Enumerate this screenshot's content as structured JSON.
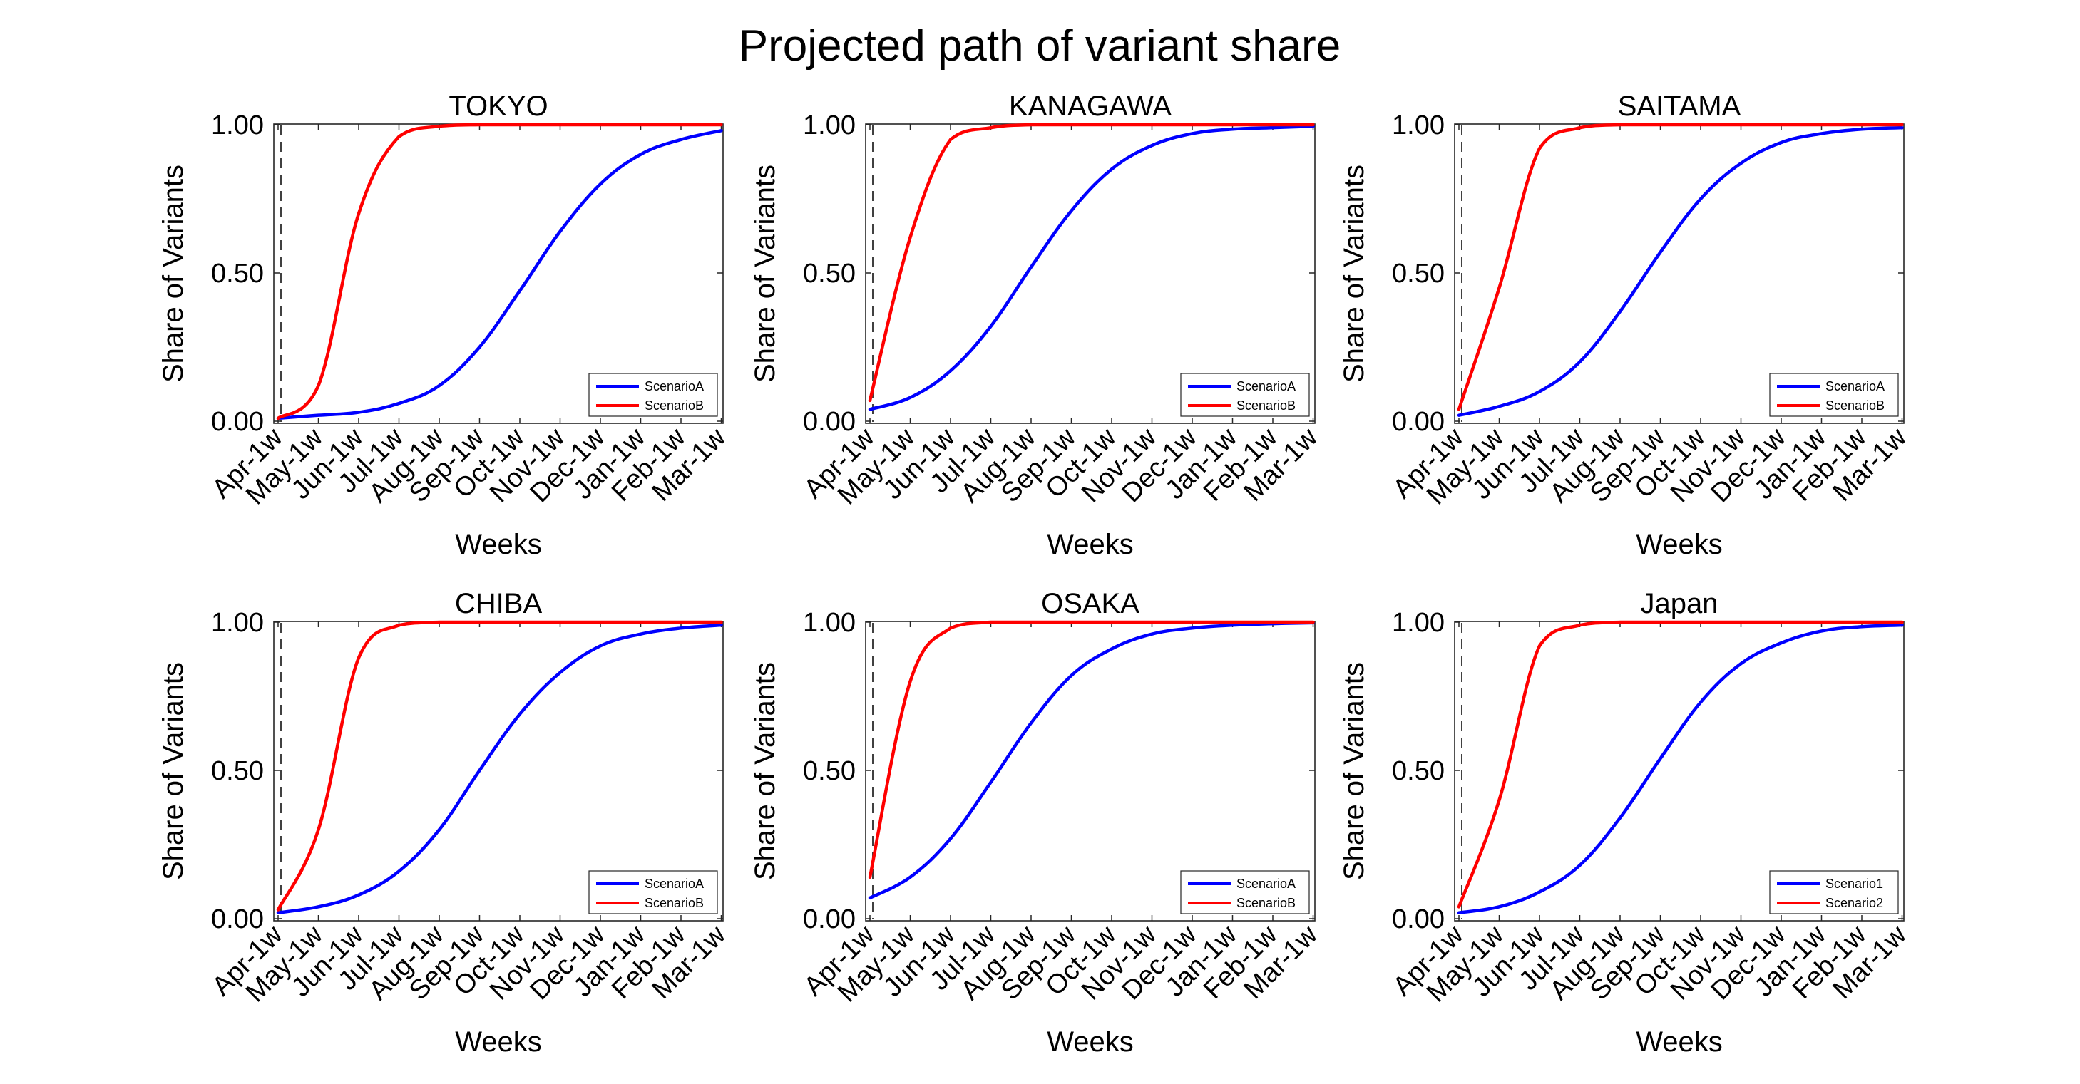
{
  "figure_title": "Projected path of variant share",
  "colors": {
    "scenario_first": "#0000ff",
    "scenario_second": "#ff0000",
    "axes": "#262626",
    "reference_line": "#404040"
  },
  "chart_data": [
    {
      "type": "line",
      "title": "TOKYO",
      "xlabel": "Weeks",
      "ylabel": "Share of Variants",
      "xtick_labels": [
        "Apr-1w",
        "May-1w",
        "Jun-1w",
        "Jul-1w",
        "Aug-1w",
        "Sep-1w",
        "Oct-1w",
        "Nov-1w",
        "Dec-1w",
        "Jan-1w",
        "Feb-1w",
        "Mar-1w"
      ],
      "ytick_labels": [
        "0.00",
        "0.50",
        "1.00"
      ],
      "ylim": [
        0,
        1
      ],
      "grid": false,
      "legend_position": "bottom-right",
      "reference_line": "dashed vertical line near Apr-1w",
      "series": [
        {
          "name": "ScenarioA",
          "color": "#0000ff",
          "points": [
            [
              "Apr-1w",
              0.01
            ],
            [
              "May-1w",
              0.02
            ],
            [
              "Jun-1w",
              0.03
            ],
            [
              "Jul-1w",
              0.06
            ],
            [
              "Aug-1w",
              0.12
            ],
            [
              "Sep-1w",
              0.25
            ],
            [
              "Oct-1w",
              0.44
            ],
            [
              "Nov-1w",
              0.64
            ],
            [
              "Dec-1w",
              0.8
            ],
            [
              "Jan-1w",
              0.9
            ],
            [
              "Feb-1w",
              0.95
            ],
            [
              "Mar-1w",
              0.98
            ]
          ]
        },
        {
          "name": "ScenarioB",
          "color": "#ff0000",
          "points": [
            [
              "Apr-1w",
              0.01
            ],
            [
              "May-1w",
              0.12
            ],
            [
              "Jun-1w",
              0.7
            ],
            [
              "Jul-1w",
              0.96
            ],
            [
              "Aug-1w",
              0.995
            ],
            [
              "Sep-1w",
              1.0
            ],
            [
              "Oct-1w",
              1.0
            ],
            [
              "Nov-1w",
              1.0
            ],
            [
              "Dec-1w",
              1.0
            ],
            [
              "Jan-1w",
              1.0
            ],
            [
              "Feb-1w",
              1.0
            ],
            [
              "Mar-1w",
              1.0
            ]
          ]
        }
      ]
    },
    {
      "type": "line",
      "title": "KANAGAWA",
      "xlabel": "Weeks",
      "ylabel": "Share of Variants",
      "xtick_labels": [
        "Apr-1w",
        "May-1w",
        "Jun-1w",
        "Jul-1w",
        "Aug-1w",
        "Sep-1w",
        "Oct-1w",
        "Nov-1w",
        "Dec-1w",
        "Jan-1w",
        "Feb-1w",
        "Mar-1w"
      ],
      "ytick_labels": [
        "0.00",
        "0.50",
        "1.00"
      ],
      "ylim": [
        0,
        1
      ],
      "grid": false,
      "legend_position": "bottom-right",
      "reference_line": "dashed vertical line near Apr-1w",
      "series": [
        {
          "name": "ScenarioA",
          "color": "#0000ff",
          "points": [
            [
              "Apr-1w",
              0.04
            ],
            [
              "May-1w",
              0.08
            ],
            [
              "Jun-1w",
              0.17
            ],
            [
              "Jul-1w",
              0.32
            ],
            [
              "Aug-1w",
              0.52
            ],
            [
              "Sep-1w",
              0.71
            ],
            [
              "Oct-1w",
              0.85
            ],
            [
              "Nov-1w",
              0.93
            ],
            [
              "Dec-1w",
              0.97
            ],
            [
              "Jan-1w",
              0.985
            ],
            [
              "Feb-1w",
              0.99
            ],
            [
              "Mar-1w",
              0.995
            ]
          ]
        },
        {
          "name": "ScenarioB",
          "color": "#ff0000",
          "points": [
            [
              "Apr-1w",
              0.07
            ],
            [
              "May-1w",
              0.62
            ],
            [
              "Jun-1w",
              0.95
            ],
            [
              "Jul-1w",
              0.99
            ],
            [
              "Aug-1w",
              1.0
            ],
            [
              "Sep-1w",
              1.0
            ],
            [
              "Oct-1w",
              1.0
            ],
            [
              "Nov-1w",
              1.0
            ],
            [
              "Dec-1w",
              1.0
            ],
            [
              "Jan-1w",
              1.0
            ],
            [
              "Feb-1w",
              1.0
            ],
            [
              "Mar-1w",
              1.0
            ]
          ]
        }
      ]
    },
    {
      "type": "line",
      "title": "SAITAMA",
      "xlabel": "Weeks",
      "ylabel": "Share of Variants",
      "xtick_labels": [
        "Apr-1w",
        "May-1w",
        "Jun-1w",
        "Jul-1w",
        "Aug-1w",
        "Sep-1w",
        "Oct-1w",
        "Nov-1w",
        "Dec-1w",
        "Jan-1w",
        "Feb-1w",
        "Mar-1w"
      ],
      "ytick_labels": [
        "0.00",
        "0.50",
        "1.00"
      ],
      "ylim": [
        0,
        1
      ],
      "grid": false,
      "legend_position": "bottom-right",
      "reference_line": "dashed vertical line near Apr-1w",
      "series": [
        {
          "name": "ScenarioA",
          "color": "#0000ff",
          "points": [
            [
              "Apr-1w",
              0.02
            ],
            [
              "May-1w",
              0.05
            ],
            [
              "Jun-1w",
              0.1
            ],
            [
              "Jul-1w",
              0.2
            ],
            [
              "Aug-1w",
              0.37
            ],
            [
              "Sep-1w",
              0.57
            ],
            [
              "Oct-1w",
              0.75
            ],
            [
              "Nov-1w",
              0.87
            ],
            [
              "Dec-1w",
              0.94
            ],
            [
              "Jan-1w",
              0.97
            ],
            [
              "Feb-1w",
              0.985
            ],
            [
              "Mar-1w",
              0.99
            ]
          ]
        },
        {
          "name": "ScenarioB",
          "color": "#ff0000",
          "points": [
            [
              "Apr-1w",
              0.04
            ],
            [
              "May-1w",
              0.45
            ],
            [
              "Jun-1w",
              0.92
            ],
            [
              "Jul-1w",
              0.99
            ],
            [
              "Aug-1w",
              1.0
            ],
            [
              "Sep-1w",
              1.0
            ],
            [
              "Oct-1w",
              1.0
            ],
            [
              "Nov-1w",
              1.0
            ],
            [
              "Dec-1w",
              1.0
            ],
            [
              "Jan-1w",
              1.0
            ],
            [
              "Feb-1w",
              1.0
            ],
            [
              "Mar-1w",
              1.0
            ]
          ]
        }
      ]
    },
    {
      "type": "line",
      "title": "CHIBA",
      "xlabel": "Weeks",
      "ylabel": "Share of Variants",
      "xtick_labels": [
        "Apr-1w",
        "May-1w",
        "Jun-1w",
        "Jul-1w",
        "Aug-1w",
        "Sep-1w",
        "Oct-1w",
        "Nov-1w",
        "Dec-1w",
        "Jan-1w",
        "Feb-1w",
        "Mar-1w"
      ],
      "ytick_labels": [
        "0.00",
        "0.50",
        "1.00"
      ],
      "ylim": [
        0,
        1
      ],
      "grid": false,
      "legend_position": "bottom-right",
      "reference_line": "dashed vertical line near Apr-1w",
      "series": [
        {
          "name": "ScenarioA",
          "color": "#0000ff",
          "points": [
            [
              "Apr-1w",
              0.02
            ],
            [
              "May-1w",
              0.04
            ],
            [
              "Jun-1w",
              0.08
            ],
            [
              "Jul-1w",
              0.16
            ],
            [
              "Aug-1w",
              0.3
            ],
            [
              "Sep-1w",
              0.5
            ],
            [
              "Oct-1w",
              0.69
            ],
            [
              "Nov-1w",
              0.83
            ],
            [
              "Dec-1w",
              0.92
            ],
            [
              "Jan-1w",
              0.96
            ],
            [
              "Feb-1w",
              0.98
            ],
            [
              "Mar-1w",
              0.99
            ]
          ]
        },
        {
          "name": "ScenarioB",
          "color": "#ff0000",
          "points": [
            [
              "Apr-1w",
              0.03
            ],
            [
              "May-1w",
              0.3
            ],
            [
              "Jun-1w",
              0.88
            ],
            [
              "Jul-1w",
              0.99
            ],
            [
              "Aug-1w",
              1.0
            ],
            [
              "Sep-1w",
              1.0
            ],
            [
              "Oct-1w",
              1.0
            ],
            [
              "Nov-1w",
              1.0
            ],
            [
              "Dec-1w",
              1.0
            ],
            [
              "Jan-1w",
              1.0
            ],
            [
              "Feb-1w",
              1.0
            ],
            [
              "Mar-1w",
              1.0
            ]
          ]
        }
      ]
    },
    {
      "type": "line",
      "title": "OSAKA",
      "xlabel": "Weeks",
      "ylabel": "Share of Variants",
      "xtick_labels": [
        "Apr-1w",
        "May-1w",
        "Jun-1w",
        "Jul-1w",
        "Aug-1w",
        "Sep-1w",
        "Oct-1w",
        "Nov-1w",
        "Dec-1w",
        "Jan-1w",
        "Feb-1w",
        "Mar-1w"
      ],
      "ytick_labels": [
        "0.00",
        "0.50",
        "1.00"
      ],
      "ylim": [
        0,
        1
      ],
      "grid": false,
      "legend_position": "bottom-right",
      "reference_line": "dashed vertical line near Apr-1w",
      "series": [
        {
          "name": "ScenarioA",
          "color": "#0000ff",
          "points": [
            [
              "Apr-1w",
              0.07
            ],
            [
              "May-1w",
              0.14
            ],
            [
              "Jun-1w",
              0.27
            ],
            [
              "Jul-1w",
              0.46
            ],
            [
              "Aug-1w",
              0.66
            ],
            [
              "Sep-1w",
              0.82
            ],
            [
              "Oct-1w",
              0.91
            ],
            [
              "Nov-1w",
              0.96
            ],
            [
              "Dec-1w",
              0.98
            ],
            [
              "Jan-1w",
              0.99
            ],
            [
              "Feb-1w",
              0.995
            ],
            [
              "Mar-1w",
              0.998
            ]
          ]
        },
        {
          "name": "ScenarioB",
          "color": "#ff0000",
          "points": [
            [
              "Apr-1w",
              0.14
            ],
            [
              "May-1w",
              0.8
            ],
            [
              "Jun-1w",
              0.98
            ],
            [
              "Jul-1w",
              1.0
            ],
            [
              "Aug-1w",
              1.0
            ],
            [
              "Sep-1w",
              1.0
            ],
            [
              "Oct-1w",
              1.0
            ],
            [
              "Nov-1w",
              1.0
            ],
            [
              "Dec-1w",
              1.0
            ],
            [
              "Jan-1w",
              1.0
            ],
            [
              "Feb-1w",
              1.0
            ],
            [
              "Mar-1w",
              1.0
            ]
          ]
        }
      ]
    },
    {
      "type": "line",
      "title": "Japan",
      "xlabel": "Weeks",
      "ylabel": "Share of Variants",
      "xtick_labels": [
        "Apr-1w",
        "May-1w",
        "Jun-1w",
        "Jul-1w",
        "Aug-1w",
        "Sep-1w",
        "Oct-1w",
        "Nov-1w",
        "Dec-1w",
        "Jan-1w",
        "Feb-1w",
        "Mar-1w"
      ],
      "ytick_labels": [
        "0.00",
        "0.50",
        "1.00"
      ],
      "ylim": [
        0,
        1
      ],
      "grid": false,
      "legend_position": "bottom-right",
      "reference_line": "dashed vertical line near Apr-1w",
      "series": [
        {
          "name": "Scenario1",
          "color": "#0000ff",
          "points": [
            [
              "Apr-1w",
              0.02
            ],
            [
              "May-1w",
              0.04
            ],
            [
              "Jun-1w",
              0.09
            ],
            [
              "Jul-1w",
              0.18
            ],
            [
              "Aug-1w",
              0.34
            ],
            [
              "Sep-1w",
              0.54
            ],
            [
              "Oct-1w",
              0.73
            ],
            [
              "Nov-1w",
              0.86
            ],
            [
              "Dec-1w",
              0.93
            ],
            [
              "Jan-1w",
              0.97
            ],
            [
              "Feb-1w",
              0.985
            ],
            [
              "Mar-1w",
              0.99
            ]
          ]
        },
        {
          "name": "Scenario2",
          "color": "#ff0000",
          "points": [
            [
              "Apr-1w",
              0.04
            ],
            [
              "May-1w",
              0.4
            ],
            [
              "Jun-1w",
              0.92
            ],
            [
              "Jul-1w",
              0.99
            ],
            [
              "Aug-1w",
              1.0
            ],
            [
              "Sep-1w",
              1.0
            ],
            [
              "Oct-1w",
              1.0
            ],
            [
              "Nov-1w",
              1.0
            ],
            [
              "Dec-1w",
              1.0
            ],
            [
              "Jan-1w",
              1.0
            ],
            [
              "Feb-1w",
              1.0
            ],
            [
              "Mar-1w",
              1.0
            ]
          ]
        }
      ]
    }
  ]
}
